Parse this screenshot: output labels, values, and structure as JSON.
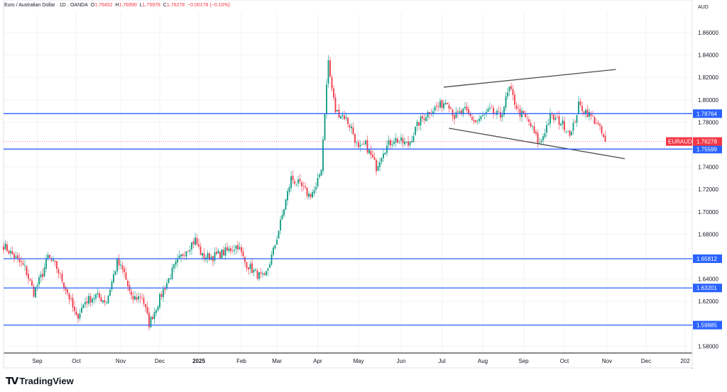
{
  "header": {
    "symbol_title": "Euro / Australian Dollar · 1D · OANDA",
    "o_label": "O",
    "o_value": "1.76452",
    "h_label": "H",
    "h_value": "1.76990",
    "l_label": "L",
    "l_value": "1.75978",
    "c_label": "C",
    "c_value": "1.76278",
    "change": "−0.00178 (−0.10%)"
  },
  "branding": {
    "name": "TradingView"
  },
  "colors": {
    "up": "#089981",
    "down": "#f23645",
    "level": "#2962ff",
    "trend": "#4a4a4a",
    "grid": "#f0f3fa"
  },
  "chart_data": {
    "type": "candlestick",
    "title": "Euro / Australian Dollar · 1D · OANDA",
    "currency_label": "AUD",
    "ylim": [
      1.565,
      1.875
    ],
    "y_ticks": [
      "1.86000",
      "1.84000",
      "1.82000",
      "1.80000",
      "1.78000",
      "1.74000",
      "1.72000",
      "1.70000",
      "1.68000",
      "1.64000",
      "1.62000",
      "1.58000"
    ],
    "x_ticks": [
      {
        "i": 19,
        "label": "Sep"
      },
      {
        "i": 41,
        "label": "Oct"
      },
      {
        "i": 66,
        "label": "Nov"
      },
      {
        "i": 88,
        "label": "Dec"
      },
      {
        "i": 110,
        "label": "2025",
        "bold": true
      },
      {
        "i": 134,
        "label": "Feb"
      },
      {
        "i": 154,
        "label": "Mar"
      },
      {
        "i": 177,
        "label": "Apr"
      },
      {
        "i": 200,
        "label": "May"
      },
      {
        "i": 224,
        "label": "Jun"
      },
      {
        "i": 247,
        "label": "Jul"
      },
      {
        "i": 270,
        "label": "Aug"
      },
      {
        "i": 293,
        "label": "Sep"
      },
      {
        "i": 316,
        "label": "Oct"
      },
      {
        "i": 340,
        "label": "Nov"
      },
      {
        "i": 362,
        "label": "Dec"
      },
      {
        "i": 384,
        "label": "202"
      }
    ],
    "x_range": [
      -2,
      388
    ],
    "close_anchors": [
      [
        0,
        1.67
      ],
      [
        6,
        1.66
      ],
      [
        12,
        1.65
      ],
      [
        17,
        1.628
      ],
      [
        22,
        1.645
      ],
      [
        25,
        1.66
      ],
      [
        30,
        1.65
      ],
      [
        36,
        1.628
      ],
      [
        41,
        1.605
      ],
      [
        46,
        1.62
      ],
      [
        52,
        1.625
      ],
      [
        58,
        1.62
      ],
      [
        64,
        1.655
      ],
      [
        68,
        1.645
      ],
      [
        72,
        1.622
      ],
      [
        78,
        1.625
      ],
      [
        82,
        1.6
      ],
      [
        86,
        1.615
      ],
      [
        90,
        1.63
      ],
      [
        96,
        1.65
      ],
      [
        102,
        1.665
      ],
      [
        108,
        1.675
      ],
      [
        112,
        1.66
      ],
      [
        118,
        1.66
      ],
      [
        126,
        1.665
      ],
      [
        132,
        1.67
      ],
      [
        136,
        1.655
      ],
      [
        142,
        1.645
      ],
      [
        147,
        1.64
      ],
      [
        152,
        1.665
      ],
      [
        156,
        1.69
      ],
      [
        162,
        1.73
      ],
      [
        166,
        1.725
      ],
      [
        172,
        1.715
      ],
      [
        176,
        1.72
      ],
      [
        179,
        1.74
      ],
      [
        181,
        1.79
      ],
      [
        183,
        1.835
      ],
      [
        184,
        1.82
      ],
      [
        187,
        1.79
      ],
      [
        192,
        1.785
      ],
      [
        196,
        1.775
      ],
      [
        200,
        1.755
      ],
      [
        204,
        1.76
      ],
      [
        210,
        1.74
      ],
      [
        214,
        1.755
      ],
      [
        220,
        1.765
      ],
      [
        228,
        1.76
      ],
      [
        234,
        1.78
      ],
      [
        240,
        1.79
      ],
      [
        246,
        1.795
      ],
      [
        250,
        1.8
      ],
      [
        254,
        1.785
      ],
      [
        260,
        1.79
      ],
      [
        266,
        1.78
      ],
      [
        274,
        1.79
      ],
      [
        280,
        1.785
      ],
      [
        285,
        1.81
      ],
      [
        290,
        1.79
      ],
      [
        296,
        1.78
      ],
      [
        302,
        1.76
      ],
      [
        308,
        1.785
      ],
      [
        314,
        1.78
      ],
      [
        320,
        1.77
      ],
      [
        324,
        1.795
      ],
      [
        328,
        1.79
      ],
      [
        334,
        1.78
      ],
      [
        339,
        1.76278
      ]
    ],
    "horizontal_levels": [
      {
        "price": 1.78764,
        "label": "1.78764"
      },
      {
        "price": 1.75599,
        "label": "1.75599"
      },
      {
        "price": 1.65812,
        "label": "1.65812"
      },
      {
        "price": 1.63201,
        "label": "1.63201"
      },
      {
        "price": 1.59885,
        "label": "1.59885"
      }
    ],
    "trend_lines": [
      {
        "from": [
          248,
          1.8113
        ],
        "to": [
          345,
          1.8271
        ]
      },
      {
        "from": [
          251,
          1.7746
        ],
        "to": [
          350,
          1.7474
        ]
      }
    ],
    "last_price": {
      "symbol": "EURAUD",
      "price": 1.76278,
      "label": "1.76278"
    }
  }
}
